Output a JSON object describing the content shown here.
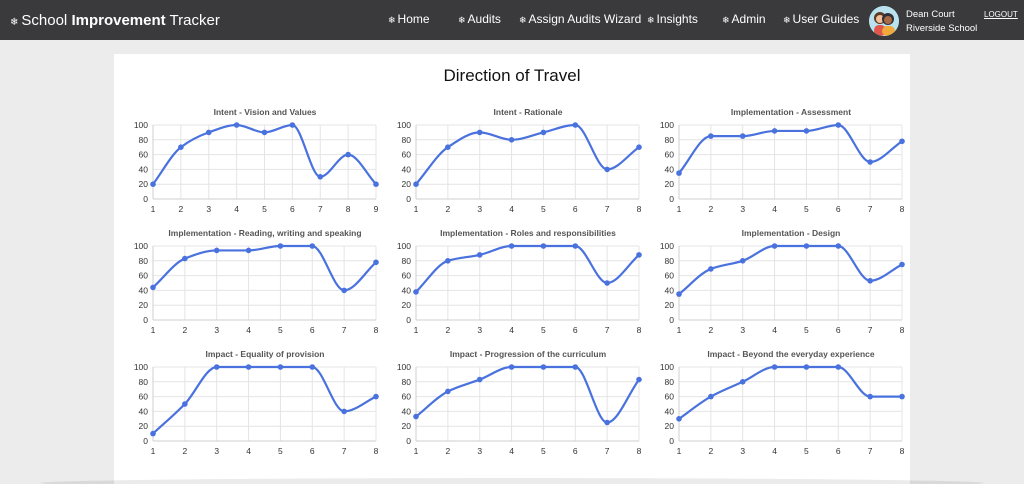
{
  "brand": {
    "prefix": "School",
    "bold": "Improvement",
    "suffix": "Tracker",
    "icon": "snowflake-icon"
  },
  "nav": {
    "items": [
      {
        "label": "Home",
        "icon": "snowflake-icon"
      },
      {
        "label": "Audits",
        "icon": "snowflake-icon"
      },
      {
        "label": "Assign Audits Wizard",
        "icon": "snowflake-icon"
      },
      {
        "label": "Insights",
        "icon": "snowflake-icon"
      },
      {
        "label": "Admin",
        "icon": "snowflake-icon"
      },
      {
        "label": "User Guides",
        "icon": "snowflake-icon"
      }
    ],
    "user": {
      "name": "Dean Court",
      "school": "Riverside School"
    },
    "logout": "LOGOUT"
  },
  "page": {
    "title": "Direction of Travel"
  },
  "colors": {
    "navbar": "#3a3a3c",
    "series": "#4a72de",
    "background": "#ececec"
  },
  "chart_data": [
    {
      "type": "line",
      "title": "Intent - Vision and Values",
      "x": [
        1,
        2,
        3,
        4,
        5,
        6,
        7,
        8,
        9
      ],
      "values": [
        20,
        70,
        90,
        100,
        90,
        100,
        30,
        60,
        20
      ],
      "ylim": [
        0,
        100
      ],
      "yticks": [
        0,
        20,
        40,
        60,
        80,
        100
      ],
      "grid": true
    },
    {
      "type": "line",
      "title": "Intent - Rationale",
      "x": [
        1,
        2,
        3,
        4,
        5,
        6,
        7,
        8
      ],
      "values": [
        20,
        70,
        90,
        80,
        90,
        100,
        40,
        70
      ],
      "ylim": [
        0,
        100
      ],
      "yticks": [
        0,
        20,
        40,
        60,
        80,
        100
      ],
      "grid": true
    },
    {
      "type": "line",
      "title": "Implementation - Assessment",
      "x": [
        1,
        2,
        3,
        4,
        5,
        6,
        7,
        8
      ],
      "values": [
        35,
        85,
        85,
        92,
        92,
        100,
        50,
        78
      ],
      "ylim": [
        0,
        100
      ],
      "yticks": [
        0,
        20,
        40,
        60,
        80,
        100
      ],
      "grid": true
    },
    {
      "type": "line",
      "title": "Implementation - Reading, writing and speaking",
      "x": [
        1,
        2,
        3,
        4,
        5,
        6,
        7,
        8
      ],
      "values": [
        44,
        83,
        94,
        94,
        100,
        100,
        40,
        78
      ],
      "ylim": [
        0,
        100
      ],
      "yticks": [
        0,
        20,
        40,
        60,
        80,
        100
      ],
      "grid": true
    },
    {
      "type": "line",
      "title": "Implementation - Roles and responsibilities",
      "x": [
        1,
        2,
        3,
        4,
        5,
        6,
        7,
        8
      ],
      "values": [
        38,
        80,
        88,
        100,
        100,
        100,
        50,
        88
      ],
      "ylim": [
        0,
        100
      ],
      "yticks": [
        0,
        20,
        40,
        60,
        80,
        100
      ],
      "grid": true
    },
    {
      "type": "line",
      "title": "Implementation - Design",
      "x": [
        1,
        2,
        3,
        4,
        5,
        6,
        7,
        8
      ],
      "values": [
        35,
        69,
        80,
        100,
        100,
        100,
        53,
        75
      ],
      "ylim": [
        0,
        100
      ],
      "yticks": [
        0,
        20,
        40,
        60,
        80,
        100
      ],
      "grid": true
    },
    {
      "type": "line",
      "title": "Impact - Equality of provision",
      "x": [
        1,
        2,
        3,
        4,
        5,
        6,
        7,
        8
      ],
      "values": [
        10,
        50,
        100,
        100,
        100,
        100,
        40,
        60
      ],
      "ylim": [
        0,
        100
      ],
      "yticks": [
        0,
        20,
        40,
        60,
        80,
        100
      ],
      "grid": true
    },
    {
      "type": "line",
      "title": "Impact - Progression of the curriculum",
      "x": [
        1,
        2,
        3,
        4,
        5,
        6,
        7,
        8
      ],
      "values": [
        33,
        67,
        83,
        100,
        100,
        100,
        25,
        83
      ],
      "ylim": [
        0,
        100
      ],
      "yticks": [
        0,
        20,
        40,
        60,
        80,
        100
      ],
      "grid": true
    },
    {
      "type": "line",
      "title": "Impact - Beyond the everyday experience",
      "x": [
        1,
        2,
        3,
        4,
        5,
        6,
        7,
        8
      ],
      "values": [
        30,
        60,
        80,
        100,
        100,
        100,
        60,
        60
      ],
      "ylim": [
        0,
        100
      ],
      "yticks": [
        0,
        20,
        40,
        60,
        80,
        100
      ],
      "grid": true
    }
  ]
}
